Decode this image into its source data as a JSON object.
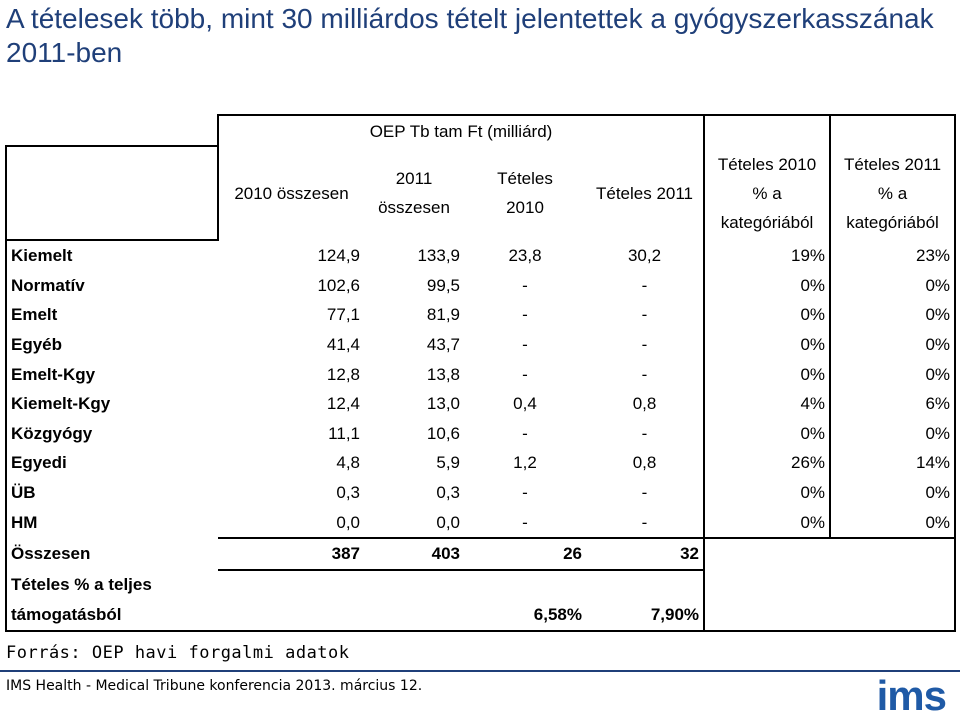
{
  "title": "A tételesek több, mint 30 milliárdos tételt jelentettek a gyógyszerkasszának 2011-ben",
  "table": {
    "group_header": "OEP Tb tam Ft (milliárd)",
    "col_2010_osszesen": "2010 összesen",
    "col_2011_osszesen": [
      "2011",
      "összesen"
    ],
    "col_teteles_2010": [
      "Tételes",
      "2010"
    ],
    "col_teteles_2011": "Tételes 2011",
    "col_pct_2010": [
      "Tételes 2010",
      "% a",
      "kategóriából"
    ],
    "col_pct_2011": [
      "Tételes 2011",
      "% a",
      "kategóriából"
    ],
    "rows": [
      {
        "label": "Kiemelt",
        "v2010": "124,9",
        "v2011": "133,9",
        "t2010": "23,8",
        "t2011": "30,2",
        "p2010": "19%",
        "p2011": "23%"
      },
      {
        "label": "Normatív",
        "v2010": "102,6",
        "v2011": "99,5",
        "t2010": "-",
        "t2011": "-",
        "p2010": "0%",
        "p2011": "0%"
      },
      {
        "label": "Emelt",
        "v2010": "77,1",
        "v2011": "81,9",
        "t2010": "-",
        "t2011": "-",
        "p2010": "0%",
        "p2011": "0%"
      },
      {
        "label": "Egyéb",
        "v2010": "41,4",
        "v2011": "43,7",
        "t2010": "-",
        "t2011": "-",
        "p2010": "0%",
        "p2011": "0%"
      },
      {
        "label": "Emelt-Kgy",
        "v2010": "12,8",
        "v2011": "13,8",
        "t2010": "-",
        "t2011": "-",
        "p2010": "0%",
        "p2011": "0%"
      },
      {
        "label": "Kiemelt-Kgy",
        "v2010": "12,4",
        "v2011": "13,0",
        "t2010": "0,4",
        "t2011": "0,8",
        "p2010": "4%",
        "p2011": "6%"
      },
      {
        "label": "Közgyógy",
        "v2010": "11,1",
        "v2011": "10,6",
        "t2010": "-",
        "t2011": "-",
        "p2010": "0%",
        "p2011": "0%"
      },
      {
        "label": "Egyedi",
        "v2010": "4,8",
        "v2011": "5,9",
        "t2010": "1,2",
        "t2011": "0,8",
        "p2010": "26%",
        "p2011": "14%"
      },
      {
        "label": "ÜB",
        "v2010": "0,3",
        "v2011": "0,3",
        "t2010": "-",
        "t2011": "-",
        "p2010": "0%",
        "p2011": "0%"
      },
      {
        "label": "HM",
        "v2010": "0,0",
        "v2011": "0,0",
        "t2010": "-",
        "t2011": "-",
        "p2010": "0%",
        "p2011": "0%"
      }
    ],
    "total": {
      "label": "Összesen",
      "v2010": "387",
      "v2011": "403",
      "t2010": "26",
      "t2011": "32"
    },
    "share": {
      "label1": "Tételes % a teljes",
      "label2": "támogatásból",
      "t2010": "6,58%",
      "t2011": "7,90%"
    }
  },
  "source": "Forrás: OEP havi forgalmi adatok",
  "footer": "IMS Health - Medical Tribune konferencia 2013. március 12.",
  "logo": "ims",
  "colors": {
    "title": "#1f3f79",
    "logo": "#1f5aa6"
  }
}
